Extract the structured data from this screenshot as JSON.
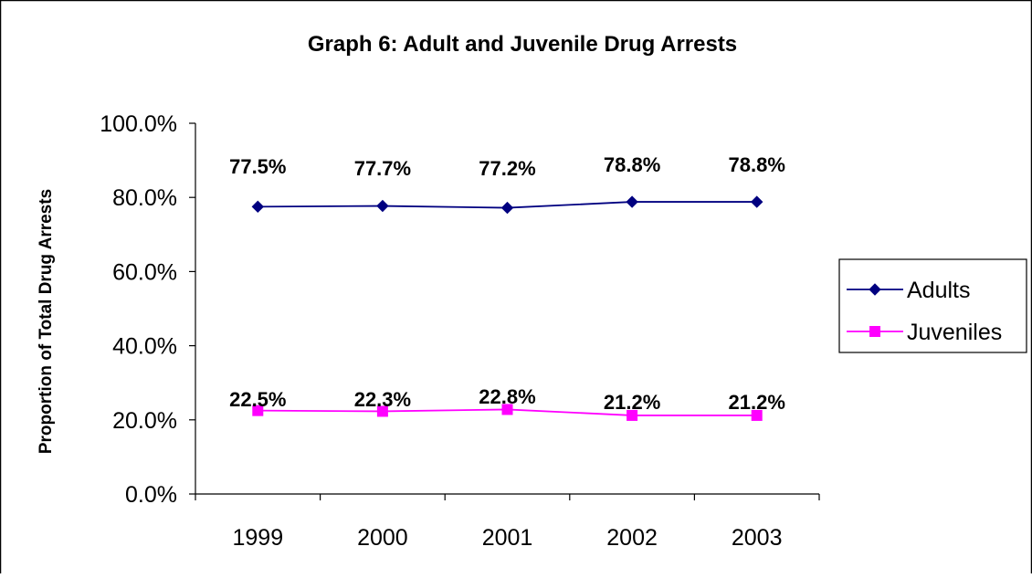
{
  "chart_data": {
    "type": "line",
    "title": "Graph 6: Adult and Juvenile Drug Arrests",
    "xlabel": "",
    "ylabel": "Proportion of Total Drug Arrests",
    "categories": [
      "1999",
      "2000",
      "2001",
      "2002",
      "2003"
    ],
    "ylim": [
      0,
      100
    ],
    "yticks": [
      "0.0%",
      "20.0%",
      "40.0%",
      "60.0%",
      "80.0%",
      "100.0%"
    ],
    "grid": false,
    "legend_position": "right",
    "series": [
      {
        "name": "Adults",
        "values": [
          77.5,
          77.7,
          77.2,
          78.8,
          78.8
        ],
        "labels": [
          "77.5%",
          "77.7%",
          "77.2%",
          "78.8%",
          "78.8%"
        ],
        "color": "#000080",
        "marker": "diamond"
      },
      {
        "name": "Juveniles",
        "values": [
          22.5,
          22.3,
          22.8,
          21.2,
          21.2
        ],
        "labels": [
          "22.5%",
          "22.3%",
          "22.8%",
          "21.2%",
          "21.2%"
        ],
        "color": "#ff00ff",
        "marker": "square"
      }
    ]
  }
}
